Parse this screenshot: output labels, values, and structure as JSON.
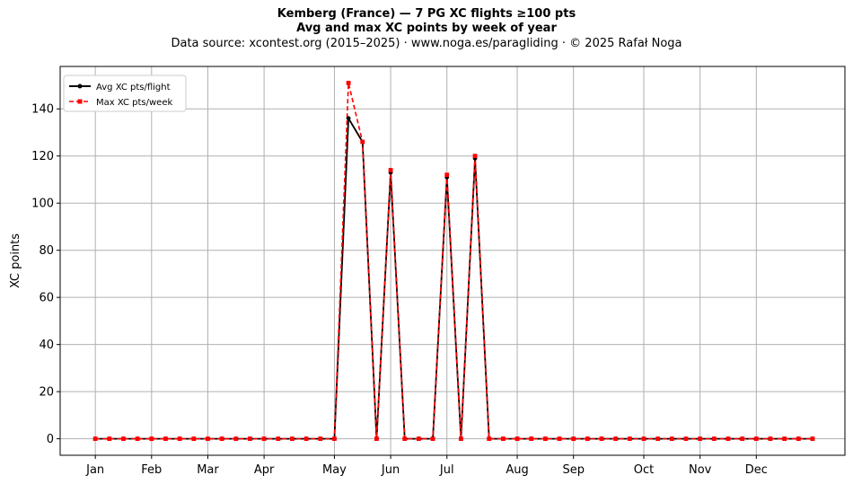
{
  "title": "Kemberg (France)  —  7 PG XC flights ≥100 pts",
  "subtitle": "Avg and max XC points by week of year",
  "source": "Data source: xcontest.org (2015–2025)  ·  www.noga.es/paragliding  ·  © 2025 Rafał Noga",
  "chart_data": {
    "type": "line",
    "ylabel": "XC points",
    "xlabel": "",
    "ylim": [
      -7,
      158
    ],
    "xlim": [
      -2.5,
      53.3
    ],
    "yticks": [
      0,
      20,
      40,
      60,
      80,
      100,
      120,
      140
    ],
    "month_ticks": [
      {
        "label": "Jan",
        "week": 0
      },
      {
        "label": "Feb",
        "week": 4
      },
      {
        "label": "Mar",
        "week": 8
      },
      {
        "label": "Apr",
        "week": 12
      },
      {
        "label": "May",
        "week": 17
      },
      {
        "label": "Jun",
        "week": 21
      },
      {
        "label": "Jul",
        "week": 25
      },
      {
        "label": "Aug",
        "week": 30
      },
      {
        "label": "Sep",
        "week": 34
      },
      {
        "label": "Oct",
        "week": 39
      },
      {
        "label": "Nov",
        "week": 43
      },
      {
        "label": "Dec",
        "week": 47
      }
    ],
    "grid": true,
    "legend_position": "top-left",
    "x": [
      0,
      1,
      2,
      3,
      4,
      5,
      6,
      7,
      8,
      9,
      10,
      11,
      12,
      13,
      14,
      15,
      16,
      17,
      18,
      19,
      20,
      21,
      22,
      23,
      24,
      25,
      26,
      27,
      28,
      29,
      30,
      31,
      32,
      33,
      34,
      35,
      36,
      37,
      38,
      39,
      40,
      41,
      42,
      43,
      44,
      45,
      46,
      47,
      48,
      49,
      50,
      51
    ],
    "series": [
      {
        "name": "Avg XC pts/flight",
        "color": "#000000",
        "marker": "circle",
        "linestyle": "solid",
        "values": [
          0,
          0,
          0,
          0,
          0,
          0,
          0,
          0,
          0,
          0,
          0,
          0,
          0,
          0,
          0,
          0,
          0,
          0,
          136,
          126,
          0,
          113,
          0,
          0,
          0,
          111,
          0,
          119,
          0,
          0,
          0,
          0,
          0,
          0,
          0,
          0,
          0,
          0,
          0,
          0,
          0,
          0,
          0,
          0,
          0,
          0,
          0,
          0,
          0,
          0,
          0,
          0
        ]
      },
      {
        "name": "Max XC pts/week",
        "color": "#ff0000",
        "marker": "square",
        "linestyle": "dashed",
        "values": [
          0,
          0,
          0,
          0,
          0,
          0,
          0,
          0,
          0,
          0,
          0,
          0,
          0,
          0,
          0,
          0,
          0,
          0,
          151,
          126,
          0,
          114,
          0,
          0,
          0,
          112,
          0,
          120,
          0,
          0,
          0,
          0,
          0,
          0,
          0,
          0,
          0,
          0,
          0,
          0,
          0,
          0,
          0,
          0,
          0,
          0,
          0,
          0,
          0,
          0,
          0,
          0
        ]
      }
    ]
  }
}
